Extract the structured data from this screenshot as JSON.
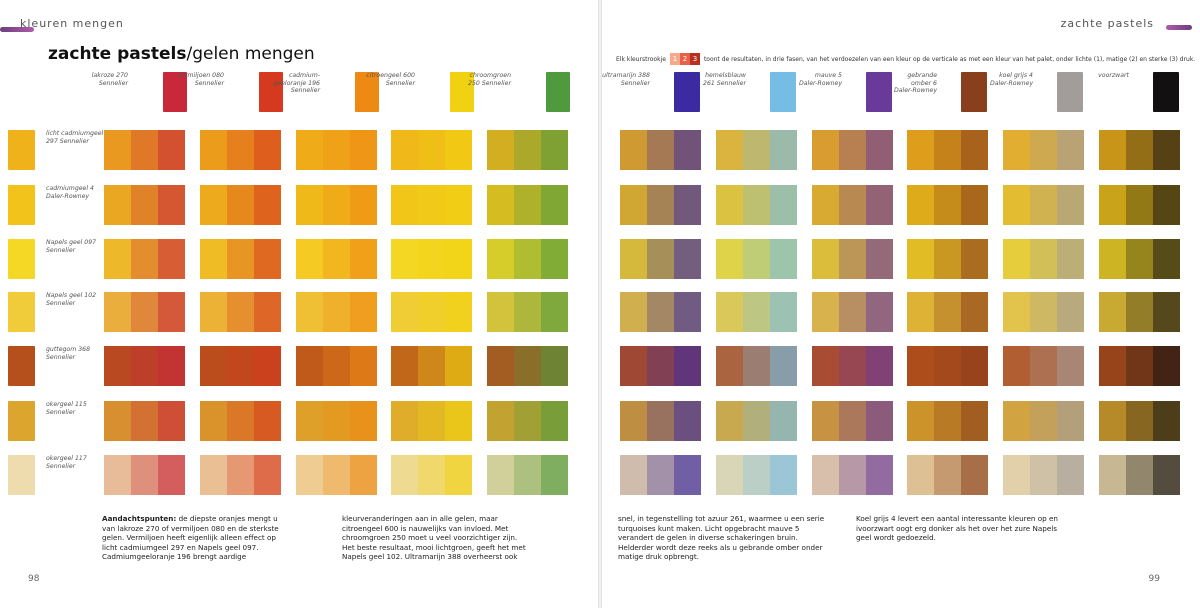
{
  "header": {
    "left_section": "kleuren mengen",
    "right_section": "zachte pastels",
    "title_bold": "zachte pastels",
    "title_rest": "/gelen mengen"
  },
  "legend": {
    "prefix": "Elk kleurstrookje",
    "keys": [
      "1",
      "2",
      "3"
    ],
    "key_colors": [
      "#f2a98e",
      "#e9604a",
      "#b8301f"
    ],
    "suffix": "toont de resultaten, in drie fasen, van het verdoezelen van een kleur op de verticale as met een kleur van het palet, onder lichte (1), matige (2) en sterke (3) druk."
  },
  "left_columns": [
    {
      "label": "lakroze 270\nSennelier",
      "color": "#c8283a"
    },
    {
      "label": "vermiljoen 080\nSennelier",
      "color": "#d63a1e"
    },
    {
      "label": "cadmium-\ngeeloranje 196\nSennelier",
      "color": "#ee8a14"
    },
    {
      "label": "citroengeel 600\nSennelier",
      "color": "#f1d212"
    },
    {
      "label": "chroomgroen\n250 Sennelier",
      "color": "#4f9a3e"
    }
  ],
  "right_columns": [
    {
      "label": "ultramarijn 388\nSennelier",
      "color": "#3b2aa2"
    },
    {
      "label": "hemelsblauw\n261 Sennelier",
      "color": "#76bde6"
    },
    {
      "label": "mauve 5\nDaler-Rowney",
      "color": "#6a3a9b"
    },
    {
      "label": "gebrande\nomber 6\nDaler-Rowney",
      "color": "#8a3f1c"
    },
    {
      "label": "koel grijs 4\nDaler-Rowney",
      "color": "#a29c9a"
    },
    {
      "label": "voorzwart",
      "color": "#121010"
    }
  ],
  "rows": [
    {
      "label": "licht cadmiumgeel\n297 Sennelier",
      "color": "#f0b21a"
    },
    {
      "label": "cadmiumgeel 4\nDaler-Rowney",
      "color": "#f1c31b"
    },
    {
      "label": "Napels geel 097\nSennelier",
      "color": "#f5d826"
    },
    {
      "label": "Napels geel 102\nSennelier",
      "color": "#f0cc3b"
    },
    {
      "label": "guttegom 368\nSennelier",
      "color": "#b5501c"
    },
    {
      "label": "okergeel 115\nSennelier",
      "color": "#dba52e"
    },
    {
      "label": "okergeel 117\nSennelier",
      "color": "#efdcae"
    }
  ],
  "text": {
    "col1_bold": "Aandachtspunten:",
    "col1": " de diepste oranjes mengt u van lakroze 270 of vermiljoen 080 en de sterkste gelen. Vermiljoen heeft eigenlijk alleen effect op licht cadmiumgeel 297 en Napels geel 097. Cadmiumgeeloranje 196 brengt aardige",
    "col2": "kleurveranderingen aan in alle gelen, maar citroengeel 600 is nauwelijks van invloed. Met chroomgroen 250 moet u veel voorzichtiger zijn. Het beste resultaat, mooi lichtgroen, geeft het met Napels geel 102. Ultramarijn 388 overheerst ook",
    "col3": "snel, in tegenstelling tot azuur 261, waarmee u een serie turquoises kunt maken. Licht opgebracht mauve 5 verandert de gelen in diverse schakeringen bruin. Helderder wordt deze reeks als u gebrande omber onder matige druk opbrengt.",
    "col4": "Koel grijs 4 levert een aantal interessante kleuren op en ivoorzwart oogt erg donker als het over het zure Napels geel wordt gedoezeld."
  },
  "page_numbers": {
    "left": "98",
    "right": "99"
  }
}
